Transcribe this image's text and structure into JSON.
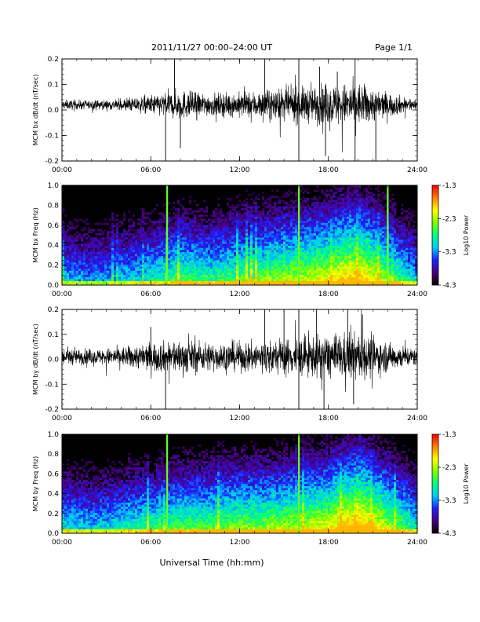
{
  "header": {
    "title": "2011/11/27  00:00–24:00 UT",
    "page": "Page 1/1"
  },
  "x_axis_title": "Universal Time (hh:mm)",
  "colorbar": {
    "ticks": [
      "-1.3",
      "-2.3",
      "-3.3",
      "-4.3"
    ],
    "label": "Log10 Power",
    "range": [
      -4.3,
      -1.3
    ],
    "colormap": [
      "#000000",
      "#4b0082",
      "#1e1eff",
      "#00c8ff",
      "#00ff80",
      "#80ff00",
      "#ffff00",
      "#ff8000",
      "#ff0000"
    ]
  },
  "chart_data": [
    {
      "type": "line",
      "ylabel": "MCM bx dB/dt (nT/sec)",
      "x_ticks": [
        "00:00",
        "06:00",
        "12:00",
        "18:00",
        "24:00"
      ],
      "x_range_hours": [
        0,
        24
      ],
      "y_ticks": [
        "0.2",
        "0.1",
        "0.0",
        "-0.1",
        "-0.2"
      ],
      "ylim": [
        -0.2,
        0.2
      ],
      "baseline": 0.02,
      "noise_profile": {
        "x": [
          0,
          2,
          4,
          6,
          8,
          10,
          12,
          14,
          16,
          18,
          20,
          22,
          24
        ],
        "amplitude": [
          0.02,
          0.018,
          0.022,
          0.04,
          0.06,
          0.045,
          0.05,
          0.06,
          0.07,
          0.08,
          0.09,
          0.05,
          0.02
        ]
      },
      "spikes": [
        {
          "x": 7.0,
          "y": -0.2
        },
        {
          "x": 7.6,
          "y": 0.2
        },
        {
          "x": 8.0,
          "y": -0.15
        },
        {
          "x": 13.7,
          "y": 0.2
        },
        {
          "x": 16.0,
          "y": 0.2
        },
        {
          "x": 16.0,
          "y": -0.2
        },
        {
          "x": 17.4,
          "y": 0.17
        },
        {
          "x": 17.8,
          "y": -0.18
        },
        {
          "x": 19.8,
          "y": 0.2
        },
        {
          "x": 19.8,
          "y": -0.2
        },
        {
          "x": 21.2,
          "y": -0.2
        },
        {
          "x": 18.6,
          "y": 0.15
        }
      ],
      "line_color": "#000000"
    },
    {
      "type": "heatmap",
      "ylabel": "MCM bx Freq (Hz)",
      "x_ticks": [
        "00:00",
        "06:00",
        "12:00",
        "18:00",
        "24:00"
      ],
      "x_range_hours": [
        0,
        24
      ],
      "y_ticks": [
        "1.0",
        "0.8",
        "0.6",
        "0.4",
        "0.2",
        "0.0"
      ],
      "ylim": [
        0.0,
        1.0
      ],
      "activity_profile": {
        "x": [
          0,
          2,
          4,
          6,
          8,
          10,
          12,
          14,
          16,
          18,
          20,
          22,
          24
        ],
        "level": [
          0.35,
          0.3,
          0.35,
          0.4,
          0.5,
          0.45,
          0.5,
          0.55,
          0.6,
          0.65,
          0.75,
          0.55,
          0.35
        ]
      },
      "bright_lines_hours": [
        7.1,
        16.0,
        22.0
      ],
      "value_range_log10": [
        -4.3,
        -1.3
      ]
    },
    {
      "type": "line",
      "ylabel": "MCM by dB/dt (nT/sec)",
      "x_ticks": [
        "00:00",
        "06:00",
        "12:00",
        "18:00",
        "24:00"
      ],
      "x_range_hours": [
        0,
        24
      ],
      "y_ticks": [
        "0.2",
        "0.1",
        "0.0",
        "-0.1",
        "-0.2"
      ],
      "ylim": [
        -0.2,
        0.2
      ],
      "baseline": 0.01,
      "noise_profile": {
        "x": [
          0,
          2,
          4,
          6,
          8,
          10,
          12,
          14,
          16,
          18,
          20,
          22,
          24
        ],
        "amplitude": [
          0.035,
          0.03,
          0.04,
          0.06,
          0.07,
          0.06,
          0.06,
          0.07,
          0.08,
          0.09,
          0.1,
          0.06,
          0.035
        ]
      },
      "spikes": [
        {
          "x": 7.0,
          "y": -0.2
        },
        {
          "x": 6.0,
          "y": 0.13
        },
        {
          "x": 13.7,
          "y": 0.2
        },
        {
          "x": 15.0,
          "y": 0.2
        },
        {
          "x": 16.0,
          "y": 0.2
        },
        {
          "x": 16.0,
          "y": -0.2
        },
        {
          "x": 17.2,
          "y": 0.2
        },
        {
          "x": 17.7,
          "y": -0.2
        },
        {
          "x": 19.7,
          "y": -0.18
        },
        {
          "x": 20.3,
          "y": 0.18
        },
        {
          "x": 19.3,
          "y": 0.2
        }
      ],
      "line_color": "#000000"
    },
    {
      "type": "heatmap",
      "ylabel": "MCM by Freq (Hz)",
      "x_ticks": [
        "00:00",
        "06:00",
        "12:00",
        "18:00",
        "24:00"
      ],
      "x_range_hours": [
        0,
        24
      ],
      "y_ticks": [
        "1.0",
        "0.8",
        "0.6",
        "0.4",
        "0.2",
        "0.0"
      ],
      "ylim": [
        0.0,
        1.0
      ],
      "activity_profile": {
        "x": [
          0,
          2,
          4,
          6,
          8,
          10,
          12,
          14,
          16,
          18,
          20,
          22,
          24
        ],
        "level": [
          0.4,
          0.35,
          0.4,
          0.45,
          0.5,
          0.5,
          0.55,
          0.55,
          0.6,
          0.65,
          0.8,
          0.6,
          0.4
        ]
      },
      "bright_lines_hours": [
        7.1,
        16.0
      ],
      "value_range_log10": [
        -4.3,
        -1.3
      ]
    }
  ]
}
